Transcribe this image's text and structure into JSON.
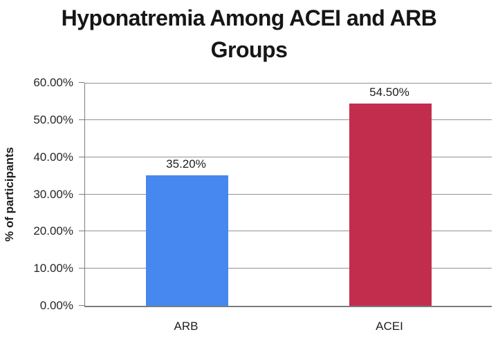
{
  "chart_data": {
    "type": "bar",
    "title": "Hyponatremia Among ACEI and ARB Groups",
    "title_lines": [
      "Hyponatremia Among ACEI and ARB",
      "Groups"
    ],
    "ylabel": "% of participants",
    "xlabel": "",
    "categories": [
      "ARB",
      "ACEI"
    ],
    "values": [
      35.2,
      54.5
    ],
    "data_labels": [
      "35.20%",
      "54.50%"
    ],
    "bar_colors": [
      "#4687F0",
      "#C22D4E"
    ],
    "ylim": [
      0,
      60
    ],
    "ytick_step": 10,
    "ytick_labels": [
      "0.00%",
      "10.00%",
      "20.00%",
      "30.00%",
      "40.00%",
      "50.00%",
      "60.00%"
    ],
    "grid": "horizontal",
    "legend": "none"
  },
  "colors": {
    "gridline": "#8d9390",
    "axis": "#777d7b",
    "title_text": "#161616",
    "label_text": "#1d1d1d"
  }
}
